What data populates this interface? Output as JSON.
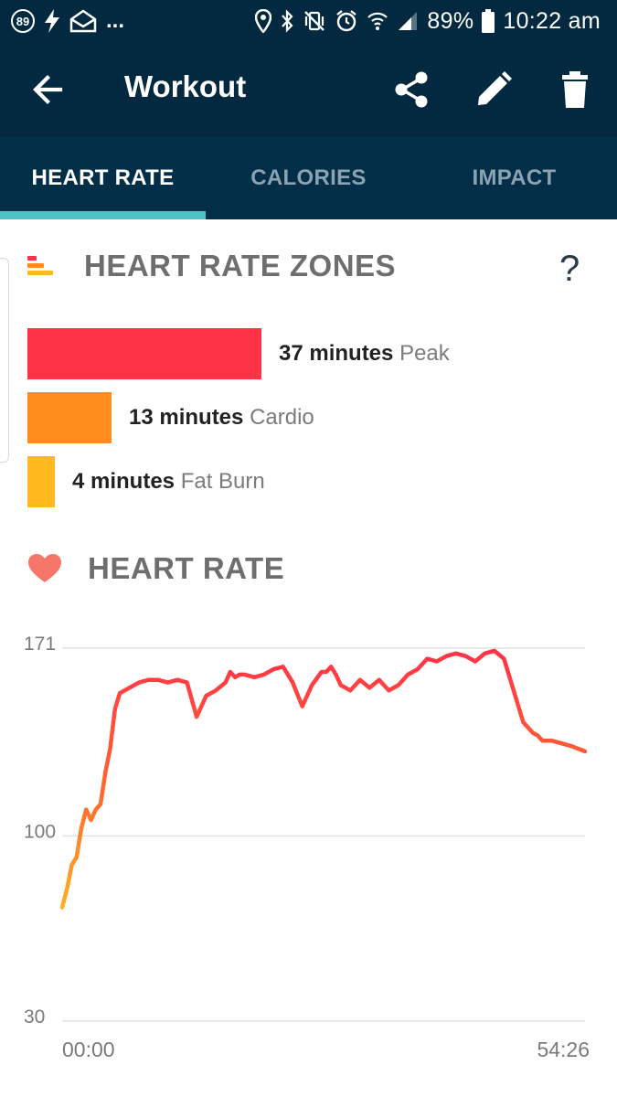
{
  "status_bar": {
    "notification_badge": "89",
    "dots": "...",
    "battery": "89%",
    "time": "10:22 am"
  },
  "app_bar": {
    "title": "Workout",
    "back_icon": "arrow-left-icon",
    "actions": [
      "share-icon",
      "edit-pencil-icon",
      "trash-icon"
    ]
  },
  "tabs": [
    {
      "label": "HEART RATE",
      "active": true
    },
    {
      "label": "CALORIES",
      "active": false
    },
    {
      "label": "IMPACT",
      "active": false
    }
  ],
  "zones": {
    "title": "HEART RATE ZONES",
    "help": "?",
    "items": [
      {
        "minutes": "37 minutes",
        "name": "Peak",
        "value": 37,
        "color": "#ff3347"
      },
      {
        "minutes": "13 minutes",
        "name": "Cardio",
        "value": 13,
        "color": "#ff8c1f"
      },
      {
        "minutes": "4 minutes",
        "name": "Fat Burn",
        "value": 4,
        "color": "#ffb91f"
      }
    ]
  },
  "heart_rate": {
    "title": "HEART RATE"
  },
  "chart_data": {
    "type": "line",
    "title": "HEART RATE",
    "xlabel": "",
    "ylabel": "",
    "x_range": [
      "00:00",
      "54:26"
    ],
    "x_ticks": [
      "00:00",
      "54:26"
    ],
    "y_ticks": [
      171,
      100,
      30
    ],
    "ylim": [
      30,
      171
    ],
    "grid": true,
    "series": [
      {
        "x_minutes": [
          0,
          0.5,
          1,
          1.5,
          2,
          2.5,
          3,
          3.5,
          4,
          4.5,
          5,
          5.5,
          6,
          6.5,
          7,
          7.5,
          8,
          9,
          10,
          11,
          12,
          13,
          14,
          15,
          16,
          17,
          17.5,
          18,
          18.5,
          19,
          20,
          21,
          22,
          23,
          24,
          25,
          26,
          27,
          27.5,
          28,
          28.5,
          29,
          30,
          31,
          32,
          33,
          34,
          35,
          36,
          37,
          38,
          39,
          40,
          41,
          42,
          43,
          44,
          45,
          46,
          47,
          48,
          49,
          49.5,
          50,
          51,
          52,
          53,
          54.43
        ],
        "values": [
          73,
          80,
          89,
          92,
          103,
          110,
          106,
          110,
          112,
          124,
          133,
          148,
          154,
          155,
          156,
          157,
          158,
          159,
          159,
          158,
          159,
          158,
          145,
          153,
          155,
          158,
          162,
          160,
          161,
          161,
          160,
          161,
          163,
          164,
          158,
          149,
          157,
          162,
          162,
          164,
          161,
          157,
          155,
          159,
          156,
          159,
          155,
          157,
          161,
          163,
          167,
          166,
          168,
          169,
          168,
          166,
          169,
          170,
          167,
          155,
          143,
          139,
          138,
          136,
          136,
          135,
          134,
          132
        ],
        "color_start": "#ffb91f",
        "color_end": "#ff2f4a"
      }
    ]
  }
}
